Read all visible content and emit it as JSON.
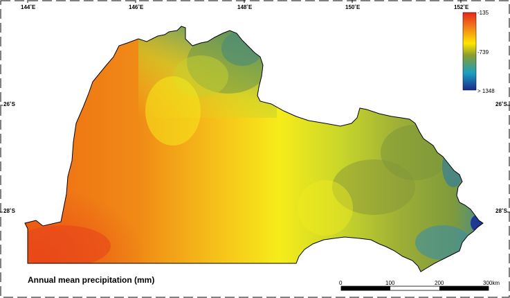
{
  "map": {
    "title": "Annual mean precipitation (mm)",
    "lon_ticks": [
      "144˚E",
      "146˚E",
      "148˚E",
      "150˚E",
      "152˚E"
    ],
    "lat_ticks_left": [
      "26˚S",
      "28˚S"
    ],
    "lat_ticks_right": [
      "26˚S",
      "28˚S"
    ],
    "legend": {
      "labels": [
        "-135",
        "-739",
        "> 1348"
      ],
      "colors": [
        "#e8251a",
        "#f07a1a",
        "#ffe600",
        "#8a9c2c",
        "#1aa0c0",
        "#1a2a8a"
      ]
    },
    "scale_bar": {
      "labels": [
        "0",
        "100",
        "200",
        "300km"
      ]
    },
    "fill_colors": {
      "dry": "#f07a12",
      "mid": "#f5c21a",
      "yellow": "#f4ef1a",
      "green": "#8ea23a",
      "wet": "#2a86b0",
      "wettest": "#1a2f98"
    }
  }
}
